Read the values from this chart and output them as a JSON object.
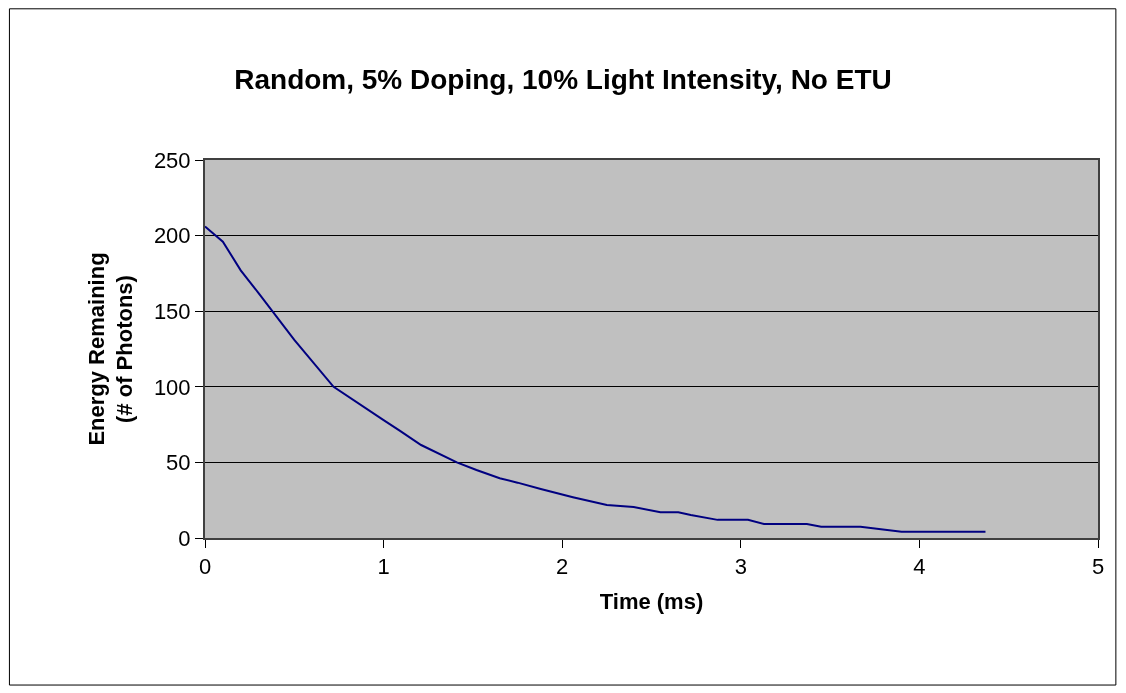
{
  "chart_data": {
    "type": "line",
    "title": "Random, 5% Doping, 10% Light Intensity, No ETU",
    "xlabel": "Time (ms)",
    "ylabel": "Energy Remaining\n(# of Photons)",
    "x": [
      0,
      0.1,
      0.2,
      0.3,
      0.5,
      0.72,
      1,
      1.09,
      1.21,
      1.41,
      1.52,
      1.65,
      1.75,
      1.88,
      2.06,
      2.25,
      2.4,
      2.55,
      2.65,
      2.72,
      2.87,
      3.04,
      3.13,
      3.37,
      3.45,
      3.67,
      3.9,
      4.37
    ],
    "series": [
      {
        "color": "#000080",
        "values": [
          206,
          196,
          177,
          162,
          131,
          100,
          78,
          71,
          61.5,
          50,
          45,
          39.5,
          36.6,
          32.4,
          27,
          21.8,
          20.5,
          17,
          17,
          15.2,
          12,
          12,
          9.2,
          9.2,
          7.5,
          7.5,
          4.2,
          4.2
        ]
      }
    ],
    "xlim": [
      0,
      5
    ],
    "xticks": [
      0,
      1,
      2,
      3,
      4,
      5
    ],
    "ylim": [
      0,
      250
    ],
    "yticks": [
      0,
      50,
      100,
      150,
      200,
      250
    ],
    "grid": "y"
  }
}
